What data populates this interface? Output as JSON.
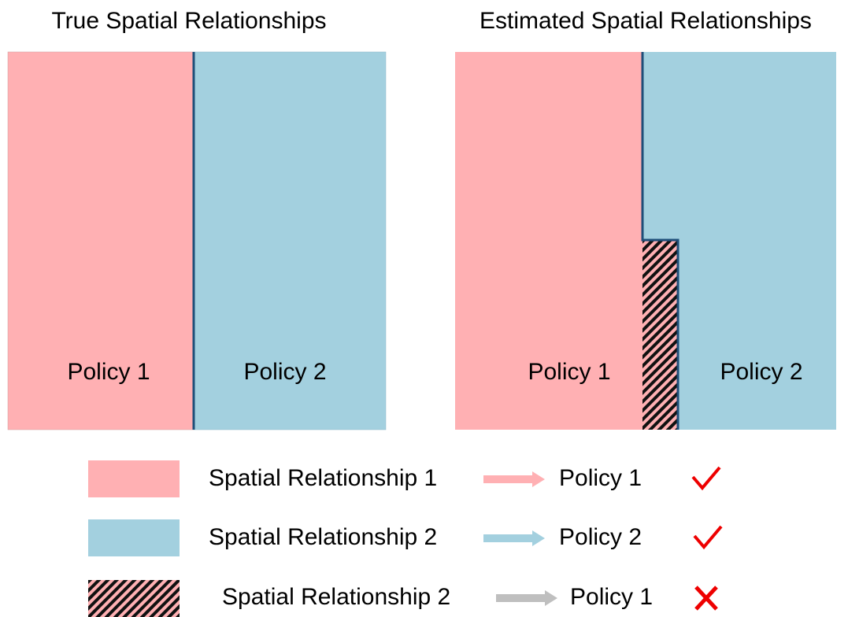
{
  "panels": [
    {
      "title": "True Spatial Relationships",
      "regions": [
        {
          "label": "Policy 1"
        },
        {
          "label": "Policy 2"
        }
      ]
    },
    {
      "title": "Estimated Spatial Relationships",
      "regions": [
        {
          "label": "Policy 1"
        },
        {
          "label": "Policy 2"
        }
      ]
    }
  ],
  "legend": [
    {
      "relationship": "Spatial Relationship 1",
      "policy": "Policy 1"
    },
    {
      "relationship": "Spatial Relationship 2",
      "policy": "Policy 2"
    },
    {
      "relationship": "Spatial Relationship 2",
      "policy": "Policy 1"
    }
  ]
}
